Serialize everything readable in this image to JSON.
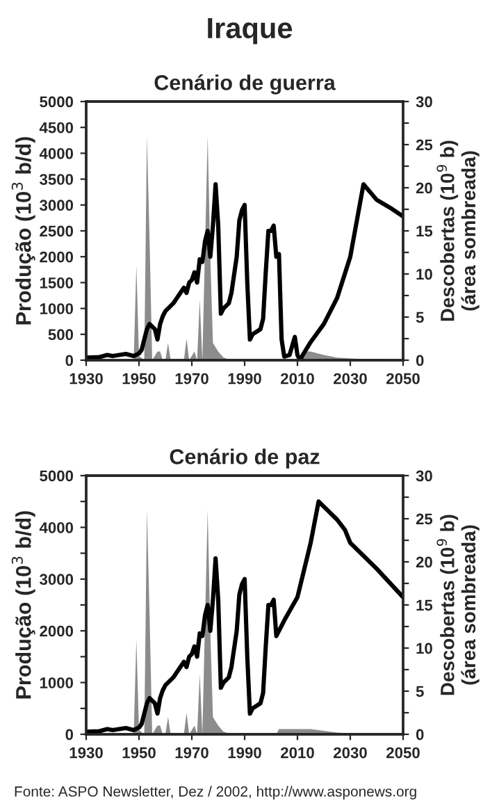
{
  "chart_data": [
    {
      "type": "line",
      "title": "Iraque",
      "subtitle": "Cenário de guerra",
      "ylabel": "Produção (10$^{3}$ b/d)",
      "y2label": "Descobertas (10$^{9}$ b)\n(área sombreada)",
      "xlim": [
        1930,
        2050
      ],
      "xticks": [
        1930,
        1950,
        1970,
        1990,
        2010,
        2030,
        2050
      ],
      "ylim": [
        0,
        5000
      ],
      "yticks": [
        0,
        500,
        1000,
        1500,
        2000,
        2500,
        3000,
        3500,
        4000,
        4500,
        5000
      ],
      "y2lim": [
        0,
        30
      ],
      "y2ticks": [
        0,
        {
          "value": 2.5,
          "label": null
        },
        5,
        {
          "value": 7.5,
          "label": null
        },
        10,
        {
          "value": 12.5,
          "label": null
        },
        15,
        {
          "value": 17.5,
          "label": null
        },
        20,
        {
          "value": 22.5,
          "label": null
        },
        25,
        {
          "value": 27.5,
          "label": null
        },
        30
      ],
      "grid": false,
      "series": [
        {
          "type": "area",
          "axis": "y2",
          "color": "#8c8c8c",
          "x": [
            1930,
            1948,
            1949,
            1950,
            1952,
            1953,
            1954,
            1955,
            1957,
            1958,
            1959,
            1960,
            1961,
            1962,
            1967,
            1968,
            1969,
            1971,
            1972,
            1973,
            1974,
            1976,
            1977,
            1978,
            1979,
            1980,
            1982,
            1985,
            2010,
            2012,
            2015,
            2020,
            2025,
            2030,
            2040,
            2045,
            2050
          ],
          "values": [
            0,
            0,
            11,
            0.5,
            0,
            26,
            14,
            0,
            1,
            1,
            0,
            0,
            2,
            0,
            0,
            2.5,
            0,
            1,
            0,
            7,
            0,
            26,
            12,
            2,
            1.5,
            1,
            0.3,
            0,
            0,
            1,
            1,
            0.6,
            0.3,
            0.2,
            0.1,
            0,
            0
          ]
        },
        {
          "color": "#000000",
          "x": [
            1930,
            1935,
            1938,
            1940,
            1945,
            1948,
            1950,
            1951,
            1952,
            1953,
            1954,
            1955,
            1956,
            1957,
            1958,
            1959,
            1960,
            1961,
            1963,
            1965,
            1967,
            1968,
            1969,
            1970,
            1971,
            1972,
            1973,
            1974,
            1975,
            1976,
            1977,
            1978,
            1979,
            1980,
            1981,
            1982,
            1984,
            1985,
            1987,
            1988,
            1989,
            1990,
            1991,
            1992,
            1993,
            1996,
            1997,
            1998,
            1999,
            2000,
            2001,
            2002,
            2003,
            2004,
            2005,
            2007,
            2009,
            2010,
            2011,
            2012,
            2015,
            2020,
            2025,
            2030,
            2035,
            2040,
            2045,
            2050
          ],
          "values": [
            50,
            60,
            100,
            80,
            120,
            80,
            130,
            200,
            400,
            600,
            700,
            650,
            600,
            400,
            700,
            850,
            950,
            1000,
            1100,
            1250,
            1400,
            1300,
            1500,
            1550,
            1700,
            1500,
            1950,
            1900,
            2300,
            2500,
            2000,
            2600,
            3400,
            2600,
            900,
            1000,
            1100,
            1300,
            2000,
            2700,
            2900,
            3000,
            1500,
            400,
            500,
            600,
            800,
            1700,
            2500,
            2500,
            2600,
            2000,
            2050,
            400,
            70,
            100,
            450,
            100,
            0,
            100,
            350,
            700,
            1200,
            2000,
            3400,
            3100,
            2950,
            2780
          ]
        }
      ]
    },
    {
      "type": "line",
      "title": "Cenário de paz",
      "ylabel": "Produção (10$^{3}$ b/d)",
      "y2label": "Descobertas (10$^{9}$ b)\n(área sombreada)",
      "annotations": [
        "Fonte: ASPO Newsletter, Dez / 2002, http://www.asponews.org"
      ],
      "xlim": [
        1930,
        2050
      ],
      "xticks": [
        1930,
        1950,
        1970,
        1990,
        2010,
        2030,
        2050
      ],
      "ylim": [
        0,
        5000
      ],
      "yticks": [
        0,
        {
          "value": 500,
          "label": null
        },
        1000,
        {
          "value": 1500,
          "label": null
        },
        2000,
        {
          "value": 2500,
          "label": null
        },
        3000,
        {
          "value": 3500,
          "label": null
        },
        4000,
        {
          "value": 4500,
          "label": null
        },
        5000
      ],
      "y2lim": [
        0,
        30
      ],
      "y2ticks": [
        0,
        {
          "value": 2.5,
          "label": null
        },
        5,
        {
          "value": 7.5,
          "label": null
        },
        10,
        {
          "value": 12.5,
          "label": null
        },
        15,
        {
          "value": 17.5,
          "label": null
        },
        20,
        {
          "value": 22.5,
          "label": null
        },
        25,
        {
          "value": 27.5,
          "label": null
        },
        30
      ],
      "grid": false,
      "series": [
        {
          "type": "area",
          "axis": "y2",
          "color": "#8c8c8c",
          "x": [
            1930,
            1948,
            1949,
            1950,
            1952,
            1953,
            1954,
            1955,
            1957,
            1958,
            1959,
            1960,
            1961,
            1962,
            1967,
            1968,
            1969,
            1971,
            1972,
            1973,
            1974,
            1976,
            1977,
            1978,
            1979,
            1980,
            1982,
            1985,
            2002,
            2003,
            2015,
            2020,
            2025,
            2030,
            2040,
            2045,
            2050
          ],
          "values": [
            0,
            0,
            11,
            0.5,
            0,
            26,
            14,
            0,
            1,
            1,
            0,
            0,
            2,
            0,
            0,
            2.5,
            0,
            1,
            0,
            7,
            0,
            26,
            12,
            2,
            1.5,
            1,
            0.3,
            0,
            0,
            0.6,
            0.6,
            0.4,
            0.2,
            0.1,
            0.1,
            0,
            0
          ]
        },
        {
          "color": "#000000",
          "x": [
            1930,
            1935,
            1938,
            1940,
            1945,
            1948,
            1950,
            1951,
            1952,
            1953,
            1954,
            1955,
            1956,
            1957,
            1958,
            1959,
            1960,
            1961,
            1963,
            1965,
            1967,
            1968,
            1969,
            1970,
            1971,
            1972,
            1973,
            1974,
            1975,
            1976,
            1977,
            1978,
            1979,
            1980,
            1981,
            1982,
            1984,
            1985,
            1987,
            1988,
            1989,
            1990,
            1991,
            1992,
            1993,
            1996,
            1997,
            1998,
            1999,
            2000,
            2001,
            2002,
            2005,
            2010,
            2015,
            2018,
            2020,
            2025,
            2028,
            2030,
            2040,
            2050
          ],
          "values": [
            50,
            60,
            100,
            80,
            120,
            80,
            130,
            200,
            400,
            600,
            700,
            650,
            600,
            400,
            700,
            850,
            950,
            1000,
            1100,
            1250,
            1400,
            1300,
            1500,
            1550,
            1700,
            1500,
            1950,
            1900,
            2300,
            2500,
            2000,
            2600,
            3400,
            2600,
            900,
            1000,
            1100,
            1300,
            2000,
            2700,
            2900,
            3000,
            1500,
            400,
            500,
            600,
            800,
            1700,
            2500,
            2500,
            2600,
            1900,
            2200,
            2650,
            3700,
            4500,
            4400,
            4150,
            3950,
            3700,
            3200,
            2650
          ]
        }
      ]
    }
  ]
}
